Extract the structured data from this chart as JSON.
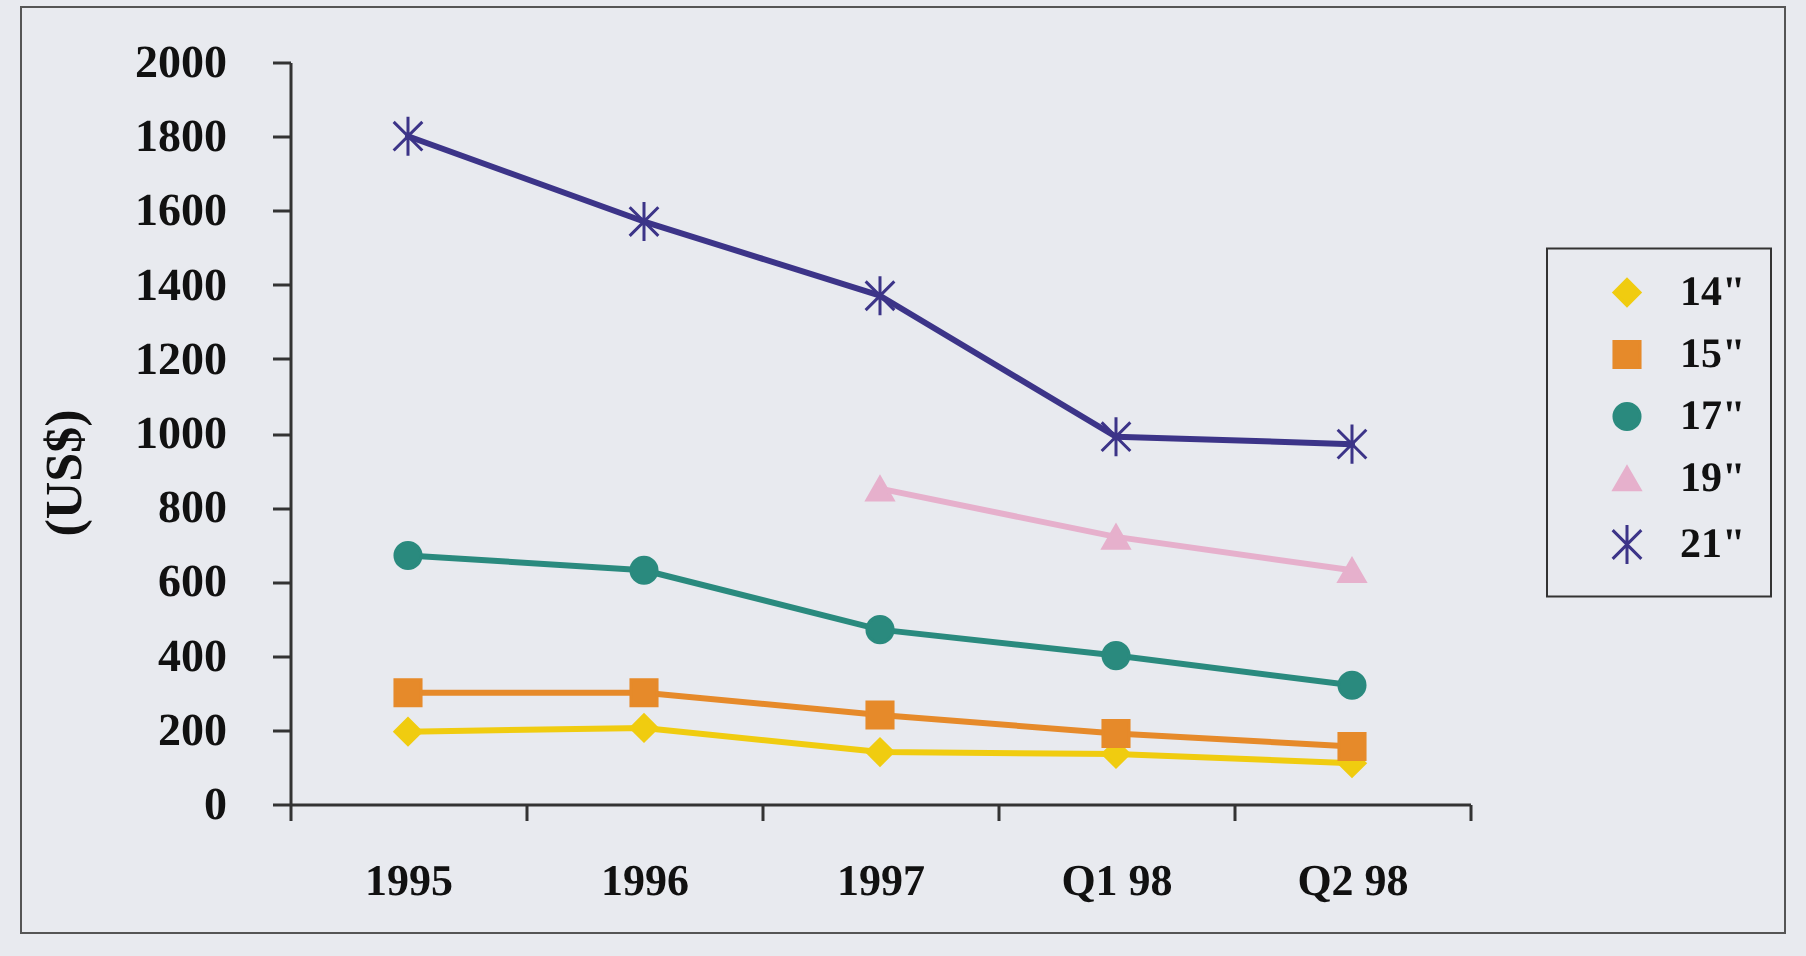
{
  "chart_data": {
    "type": "line",
    "categories": [
      "1995",
      "1996",
      "1997",
      "Q1 98",
      "Q2 98"
    ],
    "ylabel": "(US$)",
    "ylim": [
      0,
      2000
    ],
    "yticks": [
      0,
      200,
      400,
      600,
      800,
      1000,
      1200,
      1400,
      1600,
      1800,
      2000
    ],
    "legend": "right",
    "series": [
      {
        "name": "14\"",
        "color": "#f0cc10",
        "marker": "diamond",
        "values": [
          195,
          205,
          140,
          135,
          110
        ]
      },
      {
        "name": "15\"",
        "color": "#e68a2a",
        "marker": "square",
        "values": [
          300,
          300,
          240,
          190,
          155
        ]
      },
      {
        "name": "17\"",
        "color": "#2a8a7e",
        "marker": "circle",
        "values": [
          670,
          630,
          470,
          400,
          320
        ]
      },
      {
        "name": "19\"",
        "color": "#e6b0cc",
        "marker": "triangle",
        "values": [
          null,
          null,
          850,
          720,
          630
        ]
      },
      {
        "name": "21\"",
        "color": "#3c3488",
        "marker": "cross",
        "values": [
          1800,
          1570,
          1370,
          990,
          970
        ]
      }
    ]
  }
}
